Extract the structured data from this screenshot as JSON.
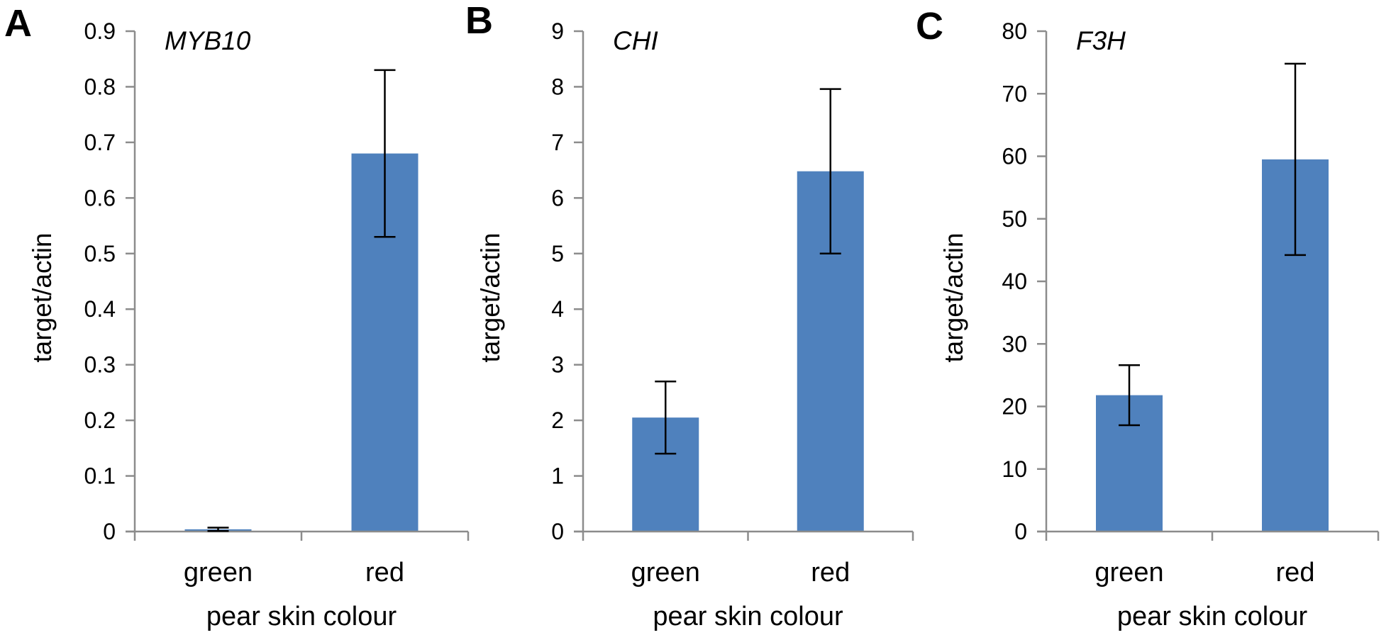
{
  "figure": {
    "description": "Three-panel bar figure comparing gene expression (target/actin) in green vs red pear skin",
    "background": "#ffffff"
  },
  "style": {
    "bar_color": "#4f81bd",
    "error_color": "#000000",
    "axis_color": "#8c8c8c",
    "text_color": "#000000"
  },
  "chart_data": [
    {
      "type": "bar",
      "panel_label": "A",
      "title": "MYB10",
      "categories": [
        "green",
        "red"
      ],
      "values": [
        0.004,
        0.68
      ],
      "errors": [
        0.003,
        0.15
      ],
      "xlabel": "pear skin colour",
      "ylabel": "target/actin",
      "ylim": [
        0,
        0.9
      ],
      "ytick_labels": [
        "0",
        "0.1",
        "0.2",
        "0.3",
        "0.4",
        "0.5",
        "0.6",
        "0.7",
        "0.8",
        "0.9"
      ],
      "grid": false,
      "legend": "none"
    },
    {
      "type": "bar",
      "panel_label": "B",
      "title": "CHI",
      "categories": [
        "green",
        "red"
      ],
      "values": [
        2.05,
        6.48
      ],
      "errors": [
        0.65,
        1.48
      ],
      "xlabel": "pear skin colour",
      "ylabel": "target/actin",
      "ylim": [
        0,
        9
      ],
      "ytick_labels": [
        "0",
        "1",
        "2",
        "3",
        "4",
        "5",
        "6",
        "7",
        "8",
        "9"
      ],
      "grid": false,
      "legend": "none"
    },
    {
      "type": "bar",
      "panel_label": "C",
      "title": "F3H",
      "categories": [
        "green",
        "red"
      ],
      "values": [
        21.8,
        59.5
      ],
      "errors": [
        4.8,
        15.3
      ],
      "xlabel": "pear skin colour",
      "ylabel": "target/actin",
      "ylim": [
        0,
        80
      ],
      "ytick_labels": [
        "0",
        "10",
        "20",
        "30",
        "40",
        "50",
        "60",
        "70",
        "80"
      ],
      "grid": false,
      "legend": "none"
    }
  ]
}
